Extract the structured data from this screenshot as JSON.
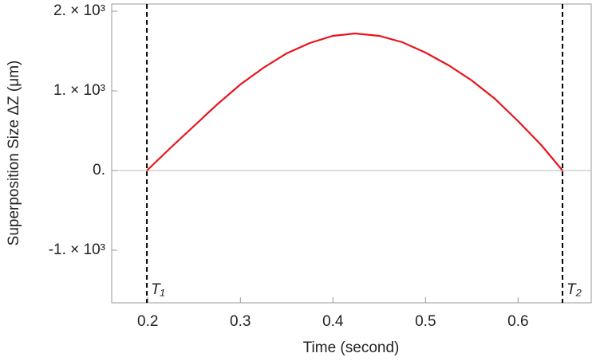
{
  "chart_data": {
    "type": "line",
    "x_label": "Time (second)",
    "y_label": "Superposition Size ΔZ (μm)",
    "x": [
      0.199,
      0.225,
      0.25,
      0.275,
      0.3,
      0.325,
      0.35,
      0.375,
      0.4,
      0.424,
      0.45,
      0.475,
      0.5,
      0.525,
      0.55,
      0.575,
      0.6,
      0.625,
      0.648
    ],
    "values": [
      0,
      290,
      560,
      830,
      1080,
      1290,
      1470,
      1600,
      1690,
      1720,
      1690,
      1610,
      1480,
      1320,
      1130,
      900,
      620,
      320,
      0
    ],
    "color": "#e8141c",
    "xlim": [
      0.161,
      0.679
    ],
    "ylim": [
      -1660,
      2090
    ],
    "xticks": [
      0.2,
      0.3,
      0.4,
      0.5,
      0.6
    ],
    "yticks": [
      {
        "value": -1000,
        "label": "-1. × 10³"
      },
      {
        "value": 0,
        "label": "0."
      },
      {
        "value": 1000,
        "label": "1. × 10³"
      },
      {
        "value": 2000,
        "label": "2. × 10³"
      }
    ],
    "vlines": [
      {
        "x": 0.199,
        "label": "T₁"
      },
      {
        "x": 0.648,
        "label": "T₂"
      }
    ]
  }
}
